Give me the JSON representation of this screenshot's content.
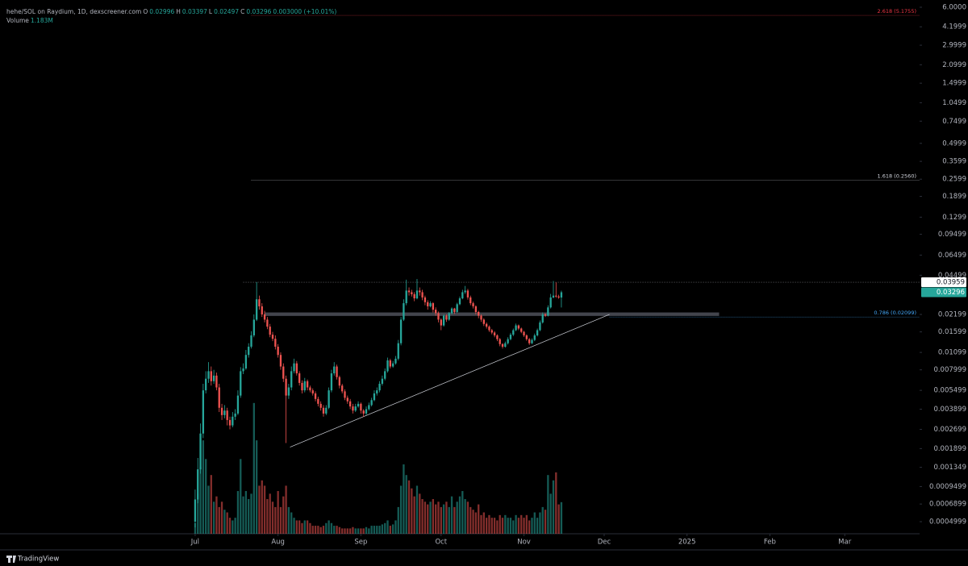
{
  "chart_data": {
    "type": "candlestick",
    "title": "hehe/SOL on Raydium, 1D, dexscreener.com",
    "ohlc_labels": [
      "O",
      "H",
      "L",
      "C"
    ],
    "change": "0.003000 (+10.01%)",
    "branding": "TradingView",
    "log_scale": true,
    "up_color": "#26a69a",
    "down_color": "#ef5350",
    "xlim": [
      -73,
      271
    ],
    "xticks": [
      {
        "value": 0,
        "label": "Jul"
      },
      {
        "value": 31,
        "label": "Aug"
      },
      {
        "value": 62,
        "label": "Sep"
      },
      {
        "value": 92,
        "label": "Oct"
      },
      {
        "value": 123,
        "label": "Nov"
      },
      {
        "value": 153,
        "label": "Dec"
      },
      {
        "value": 184,
        "label": "2025"
      },
      {
        "value": 215,
        "label": "Feb"
      },
      {
        "value": 243,
        "label": "Mar"
      }
    ],
    "ylim": [
      0.000401,
      6.85
    ],
    "yticks": [
      {
        "value": 6,
        "label": "6.0000"
      },
      4.1999,
      2.9999,
      2.0999,
      1.4999,
      1.0499,
      0.7499,
      0.4999,
      0.3599,
      0.2599,
      0.1899,
      0.1299,
      0.09499,
      0.06499,
      0.04499,
      0.02199,
      0.01599,
      0.01099,
      0.007999,
      0.005499,
      0.003899,
      0.002699,
      0.001899,
      0.001349,
      0.0009499,
      0.0006899,
      0.0004999
    ],
    "x": [
      0,
      1,
      2,
      3,
      4,
      5,
      6,
      7,
      8,
      9,
      10,
      11,
      12,
      13,
      14,
      15,
      16,
      17,
      18,
      19,
      20,
      21,
      22,
      23,
      24,
      25,
      26,
      27,
      28,
      29,
      30,
      31,
      32,
      33,
      34,
      35,
      36,
      37,
      38,
      39,
      40,
      41,
      42,
      43,
      44,
      45,
      46,
      47,
      48,
      49,
      50,
      51,
      52,
      53,
      54,
      55,
      56,
      57,
      58,
      59,
      60,
      61,
      62,
      63,
      64,
      65,
      66,
      67,
      68,
      69,
      70,
      71,
      72,
      73,
      74,
      75,
      76,
      77,
      78,
      79,
      80,
      81,
      82,
      83,
      84,
      85,
      86,
      87,
      88,
      89,
      90,
      91,
      92,
      93,
      94,
      95,
      96,
      97,
      98,
      99,
      100,
      101,
      102,
      103,
      104,
      105,
      106,
      107,
      108,
      109,
      110,
      111,
      112,
      113,
      114,
      115,
      116,
      117,
      118,
      119,
      120,
      121,
      122,
      123,
      124,
      125,
      126,
      127,
      128,
      129,
      130,
      131,
      132,
      133,
      134,
      135,
      136,
      137
    ],
    "open": [
      0.0005,
      0.00075,
      0.0013,
      0.0025,
      0.0055,
      0.0068,
      0.0078,
      0.0065,
      0.0072,
      0.0058,
      0.004,
      0.0035,
      0.0038,
      0.0032,
      0.0029,
      0.0034,
      0.0036,
      0.005,
      0.0078,
      0.0082,
      0.0105,
      0.0122,
      0.015,
      0.02,
      0.029,
      0.0255,
      0.022,
      0.02,
      0.0176,
      0.0152,
      0.0141,
      0.0122,
      0.0105,
      0.0085,
      0.0068,
      0.005,
      0.0058,
      0.0078,
      0.009,
      0.0075,
      0.0063,
      0.0055,
      0.0065,
      0.0058,
      0.0055,
      0.0052,
      0.0047,
      0.0043,
      0.004,
      0.0036,
      0.004,
      0.0055,
      0.0075,
      0.0085,
      0.007,
      0.006,
      0.0054,
      0.0048,
      0.0045,
      0.0041,
      0.0038,
      0.0041,
      0.0043,
      0.0038,
      0.0036,
      0.0039,
      0.0042,
      0.0046,
      0.0052,
      0.0055,
      0.0062,
      0.0068,
      0.0078,
      0.0095,
      0.0085,
      0.009,
      0.0098,
      0.013,
      0.02,
      0.027,
      0.034,
      0.033,
      0.0318,
      0.0295,
      0.034,
      0.033,
      0.03,
      0.0275,
      0.0255,
      0.027,
      0.024,
      0.0225,
      0.02,
      0.018,
      0.0215,
      0.02,
      0.0225,
      0.0245,
      0.023,
      0.0265,
      0.0295,
      0.033,
      0.034,
      0.03,
      0.027,
      0.0255,
      0.023,
      0.0215,
      0.02,
      0.0185,
      0.0176,
      0.0165,
      0.0158,
      0.015,
      0.014,
      0.0128,
      0.0122,
      0.013,
      0.014,
      0.0152,
      0.0165,
      0.018,
      0.017,
      0.016,
      0.015,
      0.014,
      0.013,
      0.0138,
      0.015,
      0.0165,
      0.019,
      0.022,
      0.0215,
      0.025,
      0.03,
      0.031,
      0.0305,
      0.02996
    ],
    "high": [
      0.0009,
      0.0016,
      0.003,
      0.0062,
      0.0078,
      0.0092,
      0.0085,
      0.008,
      0.0076,
      0.0062,
      0.0043,
      0.0042,
      0.004,
      0.0034,
      0.0037,
      0.0039,
      0.0055,
      0.0084,
      0.009,
      0.0115,
      0.013,
      0.0162,
      0.022,
      0.0397,
      0.031,
      0.027,
      0.0235,
      0.021,
      0.0185,
      0.016,
      0.015,
      0.0128,
      0.011,
      0.009,
      0.0072,
      0.0062,
      0.0085,
      0.0098,
      0.0094,
      0.0078,
      0.0066,
      0.0069,
      0.0067,
      0.006,
      0.0057,
      0.0054,
      0.0049,
      0.0045,
      0.0042,
      0.0042,
      0.0058,
      0.008,
      0.0092,
      0.0088,
      0.0072,
      0.0062,
      0.0056,
      0.005,
      0.0047,
      0.0043,
      0.0043,
      0.0045,
      0.0044,
      0.0039,
      0.0041,
      0.0044,
      0.0048,
      0.0055,
      0.0058,
      0.0065,
      0.0072,
      0.0082,
      0.01,
      0.0098,
      0.0094,
      0.0103,
      0.0138,
      0.021,
      0.029,
      0.0415,
      0.036,
      0.0345,
      0.033,
      0.042,
      0.036,
      0.0345,
      0.031,
      0.0285,
      0.028,
      0.0275,
      0.025,
      0.0232,
      0.0205,
      0.022,
      0.022,
      0.023,
      0.025,
      0.0248,
      0.0272,
      0.0305,
      0.0345,
      0.037,
      0.035,
      0.031,
      0.0278,
      0.026,
      0.0235,
      0.022,
      0.0205,
      0.019,
      0.018,
      0.0169,
      0.0162,
      0.0153,
      0.0143,
      0.013,
      0.0134,
      0.0145,
      0.0157,
      0.017,
      0.0186,
      0.0183,
      0.0173,
      0.0163,
      0.0153,
      0.0143,
      0.0142,
      0.0155,
      0.017,
      0.0197,
      0.0228,
      0.0225,
      0.026,
      0.032,
      0.0405,
      0.0395,
      0.0315,
      0.03397
    ],
    "low": [
      0.00045,
      0.0007,
      0.0012,
      0.0023,
      0.0052,
      0.0063,
      0.006,
      0.0062,
      0.0055,
      0.0037,
      0.0032,
      0.0033,
      0.0029,
      0.0027,
      0.0028,
      0.0032,
      0.0035,
      0.0048,
      0.0074,
      0.008,
      0.01,
      0.0118,
      0.0145,
      0.0195,
      0.024,
      0.021,
      0.019,
      0.0168,
      0.0145,
      0.0135,
      0.0116,
      0.01,
      0.008,
      0.0064,
      0.0021,
      0.0047,
      0.0055,
      0.0075,
      0.0072,
      0.006,
      0.0052,
      0.0053,
      0.0055,
      0.0053,
      0.005,
      0.0045,
      0.0041,
      0.0038,
      0.0034,
      0.0035,
      0.0039,
      0.0053,
      0.0072,
      0.0067,
      0.0057,
      0.0052,
      0.0046,
      0.0043,
      0.0039,
      0.0036,
      0.0037,
      0.004,
      0.0036,
      0.0034,
      0.0035,
      0.0038,
      0.0041,
      0.0045,
      0.005,
      0.0053,
      0.006,
      0.0066,
      0.0076,
      0.0082,
      0.0083,
      0.0088,
      0.0095,
      0.0125,
      0.0195,
      0.026,
      0.031,
      0.0305,
      0.028,
      0.029,
      0.031,
      0.0285,
      0.026,
      0.024,
      0.025,
      0.0228,
      0.0215,
      0.019,
      0.0165,
      0.0176,
      0.0192,
      0.0196,
      0.022,
      0.0222,
      0.0226,
      0.026,
      0.029,
      0.032,
      0.0288,
      0.026,
      0.0245,
      0.022,
      0.0205,
      0.0192,
      0.0178,
      0.017,
      0.016,
      0.0153,
      0.0145,
      0.0135,
      0.0123,
      0.0118,
      0.012,
      0.0127,
      0.0137,
      0.0148,
      0.0162,
      0.0165,
      0.0156,
      0.0146,
      0.0136,
      0.0126,
      0.0128,
      0.0135,
      0.0147,
      0.0162,
      0.0186,
      0.021,
      0.0212,
      0.0245,
      0.0295,
      0.0298,
      0.0293,
      0.02497
    ],
    "close": [
      0.00075,
      0.0013,
      0.0025,
      0.0055,
      0.0068,
      0.0078,
      0.0065,
      0.0072,
      0.0058,
      0.004,
      0.0035,
      0.0038,
      0.0032,
      0.0029,
      0.0034,
      0.0036,
      0.005,
      0.0078,
      0.0082,
      0.0105,
      0.0122,
      0.015,
      0.02,
      0.029,
      0.0255,
      0.022,
      0.02,
      0.0176,
      0.0152,
      0.0141,
      0.0122,
      0.0105,
      0.0085,
      0.0068,
      0.005,
      0.0058,
      0.0078,
      0.009,
      0.0075,
      0.0063,
      0.0055,
      0.0065,
      0.0058,
      0.0055,
      0.0052,
      0.0047,
      0.0043,
      0.004,
      0.0036,
      0.004,
      0.0055,
      0.0075,
      0.0085,
      0.007,
      0.006,
      0.0054,
      0.0048,
      0.0045,
      0.0041,
      0.0038,
      0.0041,
      0.0043,
      0.0038,
      0.0036,
      0.0039,
      0.0042,
      0.0046,
      0.0052,
      0.0055,
      0.0062,
      0.0068,
      0.0078,
      0.0095,
      0.0085,
      0.009,
      0.0098,
      0.013,
      0.02,
      0.027,
      0.034,
      0.033,
      0.0318,
      0.0295,
      0.034,
      0.033,
      0.03,
      0.0275,
      0.0255,
      0.027,
      0.024,
      0.0225,
      0.02,
      0.018,
      0.0215,
      0.02,
      0.0225,
      0.0245,
      0.023,
      0.0265,
      0.0295,
      0.033,
      0.034,
      0.03,
      0.027,
      0.0255,
      0.023,
      0.0215,
      0.02,
      0.0185,
      0.0176,
      0.0165,
      0.0158,
      0.015,
      0.014,
      0.0128,
      0.0122,
      0.013,
      0.014,
      0.0152,
      0.0165,
      0.018,
      0.017,
      0.016,
      0.015,
      0.014,
      0.013,
      0.0138,
      0.015,
      0.0165,
      0.019,
      0.022,
      0.0215,
      0.025,
      0.03,
      0.031,
      0.0305,
      0.02996,
      0.03296
    ],
    "volume": {
      "name": "Volume",
      "lim": [
        0,
        20
      ],
      "last_label": "1.183M",
      "values": [
        0.4,
        1.5,
        2.5,
        3.5,
        2.8,
        1.8,
        2.2,
        1.2,
        1.4,
        1.0,
        1.2,
        0.9,
        0.8,
        0.6,
        0.5,
        0.6,
        1.6,
        2.8,
        1.4,
        1.6,
        1.3,
        1.5,
        4.9,
        3.5,
        1.8,
        2.0,
        1.8,
        1.3,
        1.5,
        1.2,
        1.0,
        1.6,
        1.0,
        1.4,
        1.8,
        1.0,
        0.8,
        0.6,
        0.5,
        0.5,
        0.4,
        0.5,
        0.5,
        0.4,
        0.3,
        0.3,
        0.3,
        0.25,
        0.3,
        0.4,
        0.5,
        0.4,
        0.3,
        0.3,
        0.25,
        0.2,
        0.2,
        0.2,
        0.2,
        0.25,
        0.2,
        0.2,
        0.2,
        0.2,
        0.25,
        0.2,
        0.3,
        0.3,
        0.3,
        0.3,
        0.35,
        0.4,
        0.5,
        0.3,
        0.35,
        0.5,
        1.0,
        1.8,
        2.6,
        2.2,
        2.0,
        1.7,
        1.4,
        1.8,
        1.5,
        1.3,
        1.2,
        1.1,
        1.2,
        1.3,
        1.1,
        1.2,
        1.0,
        1.1,
        1.2,
        1.0,
        1.4,
        1.0,
        1.2,
        1.4,
        1.6,
        1.3,
        1.2,
        1.0,
        0.9,
        0.8,
        1.1,
        0.7,
        0.8,
        0.6,
        0.7,
        0.6,
        0.6,
        0.5,
        0.7,
        0.6,
        0.7,
        0.6,
        0.6,
        0.5,
        0.7,
        0.6,
        0.7,
        0.6,
        0.7,
        0.5,
        0.6,
        0.8,
        0.6,
        0.8,
        1.0,
        0.9,
        2.2,
        1.5,
        2.0,
        2.3,
        1.1,
        1.183
      ]
    },
    "levels": [
      {
        "label": "2.618 (5.1755)",
        "value": 5.1755,
        "from": 21,
        "color": "#f23645"
      },
      {
        "label": "1.618 (0.2560)",
        "value": 0.256,
        "from": 21,
        "color": "#d1d4dc"
      },
      {
        "label": "0.786 (0.02099)",
        "value": 0.02099,
        "from": 155,
        "color": "#42a5f5"
      }
    ],
    "price_line": {
      "value": 0.03959,
      "from": 18
    },
    "zone": {
      "x": [
        26,
        196
      ],
      "y": [
        0.0214,
        0.0228
      ]
    },
    "trendline": {
      "x": [
        35.5,
        155
      ],
      "y": [
        0.00195,
        0.022
      ]
    }
  }
}
